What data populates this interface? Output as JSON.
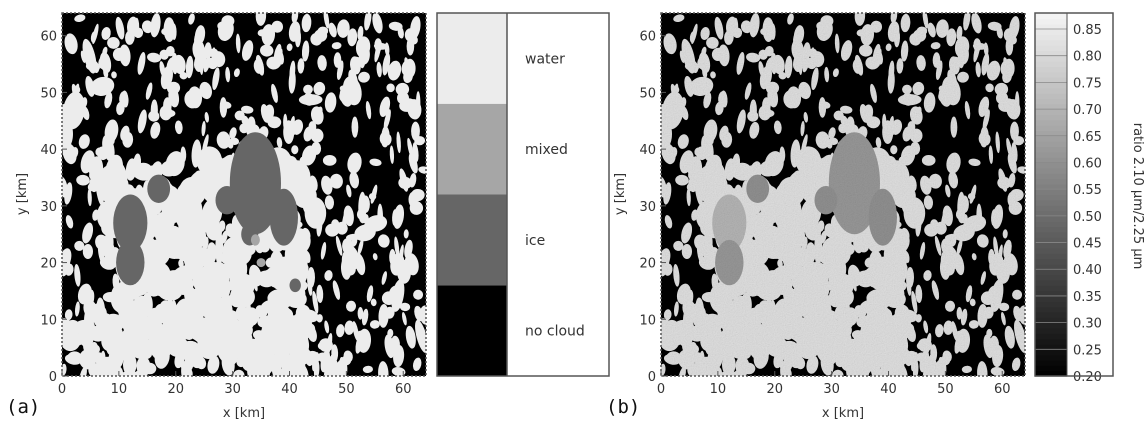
{
  "chart_data": [
    {
      "type": "heatmap",
      "panel_label": "(a)",
      "xlabel": "x [km]",
      "ylabel": "y [km]",
      "xlim": [
        0,
        64
      ],
      "ylim": [
        0,
        64
      ],
      "xticks": [
        "0",
        "10",
        "20",
        "30",
        "40",
        "50",
        "60"
      ],
      "yticks": [
        "0",
        "10",
        "20",
        "30",
        "40",
        "50",
        "60"
      ],
      "colorbar": {
        "type": "categorical",
        "categories": [
          "no cloud",
          "ice",
          "mixed",
          "water"
        ],
        "colors": [
          "#000000",
          "#666666",
          "#a6a6a6",
          "#ececec"
        ]
      },
      "features": [
        {
          "class": "ice",
          "x": 34,
          "y": 34,
          "rx": 4.5,
          "ry": 9
        },
        {
          "class": "ice",
          "x": 39,
          "y": 28,
          "rx": 2.5,
          "ry": 5
        },
        {
          "class": "ice",
          "x": 12,
          "y": 27,
          "rx": 3,
          "ry": 5
        },
        {
          "class": "ice",
          "x": 12,
          "y": 20,
          "rx": 2.5,
          "ry": 4
        },
        {
          "class": "ice",
          "x": 17,
          "y": 33,
          "rx": 2,
          "ry": 2.5
        },
        {
          "class": "ice",
          "x": 29,
          "y": 31,
          "rx": 2,
          "ry": 2.5
        },
        {
          "class": "ice",
          "x": 33,
          "y": 25,
          "rx": 1.5,
          "ry": 2
        },
        {
          "class": "ice",
          "x": 41,
          "y": 16,
          "rx": 1,
          "ry": 1.2
        },
        {
          "class": "mixed",
          "x": 34,
          "y": 24,
          "rx": 0.8,
          "ry": 1
        },
        {
          "class": "mixed",
          "x": 35,
          "y": 20,
          "rx": 0.8,
          "ry": 0.8
        }
      ]
    },
    {
      "type": "heatmap",
      "panel_label": "(b)",
      "xlabel": "x [km]",
      "ylabel": "y [km]",
      "xlim": [
        0,
        64
      ],
      "ylim": [
        0,
        64
      ],
      "xticks": [
        "0",
        "10",
        "20",
        "30",
        "40",
        "50",
        "60"
      ],
      "yticks": [
        "0",
        "10",
        "20",
        "30",
        "40",
        "50",
        "60"
      ],
      "colorbar": {
        "type": "continuous",
        "label": "ratio 2.10 µm/2.25 µm",
        "range": [
          0.2,
          0.88
        ],
        "ticks": [
          "0.20",
          "0.25",
          "0.30",
          "0.35",
          "0.40",
          "0.45",
          "0.50",
          "0.55",
          "0.60",
          "0.65",
          "0.70",
          "0.75",
          "0.80",
          "0.85"
        ]
      },
      "features": [
        {
          "class": "ice",
          "x": 34,
          "y": 34,
          "rx": 4.5,
          "ry": 9,
          "value": 0.62
        },
        {
          "class": "ice",
          "x": 39,
          "y": 28,
          "rx": 2.5,
          "ry": 5,
          "value": 0.6
        },
        {
          "class": "ice",
          "x": 12,
          "y": 27,
          "rx": 3,
          "ry": 5,
          "value": 0.7
        },
        {
          "class": "ice",
          "x": 12,
          "y": 20,
          "rx": 2.5,
          "ry": 4,
          "value": 0.62
        },
        {
          "class": "ice",
          "x": 17,
          "y": 33,
          "rx": 2,
          "ry": 2.5,
          "value": 0.6
        },
        {
          "class": "ice",
          "x": 29,
          "y": 31,
          "rx": 2,
          "ry": 2.5,
          "value": 0.6
        }
      ],
      "water_value": 0.82
    }
  ]
}
